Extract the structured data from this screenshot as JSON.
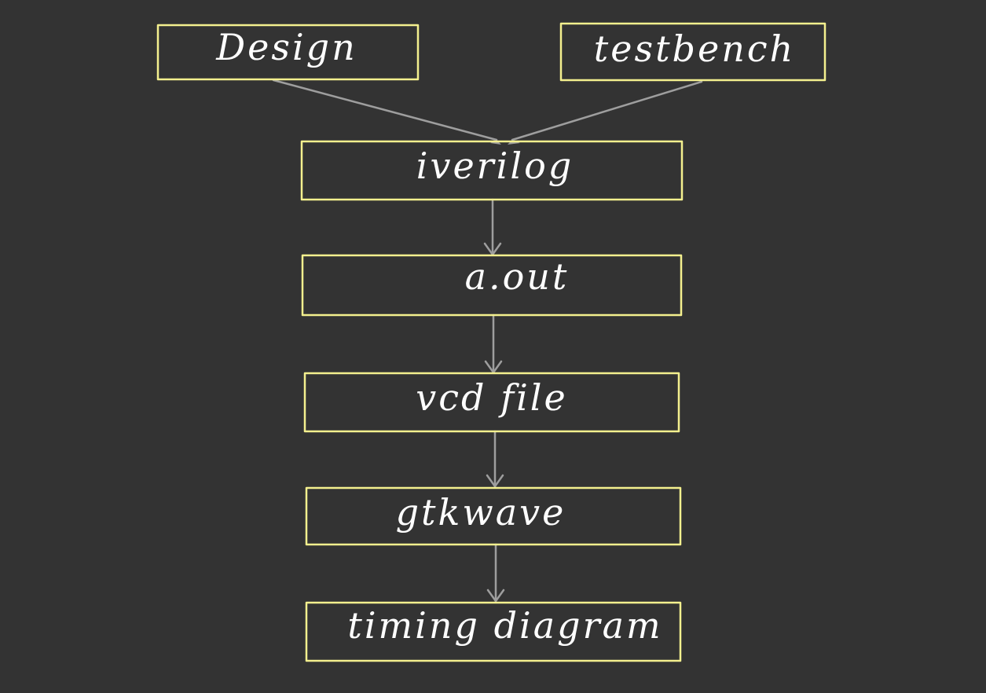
{
  "colors": {
    "background": "#333333",
    "box_stroke": "#f4f08e",
    "label": "#ffffff",
    "edge": "#9e9e9e"
  },
  "nodes": [
    {
      "id": "design",
      "label": "Design"
    },
    {
      "id": "testbench",
      "label": "testbench"
    },
    {
      "id": "iverilog",
      "label": "iverilog"
    },
    {
      "id": "aout",
      "label": "a.out"
    },
    {
      "id": "vcd",
      "label": "vcd file"
    },
    {
      "id": "gtkwave",
      "label": "gtkwave"
    },
    {
      "id": "timing",
      "label": "timing diagram"
    }
  ],
  "edges": [
    {
      "from": "design",
      "to": "iverilog"
    },
    {
      "from": "testbench",
      "to": "iverilog"
    },
    {
      "from": "iverilog",
      "to": "aout"
    },
    {
      "from": "aout",
      "to": "vcd"
    },
    {
      "from": "vcd",
      "to": "gtkwave"
    },
    {
      "from": "gtkwave",
      "to": "timing"
    }
  ]
}
